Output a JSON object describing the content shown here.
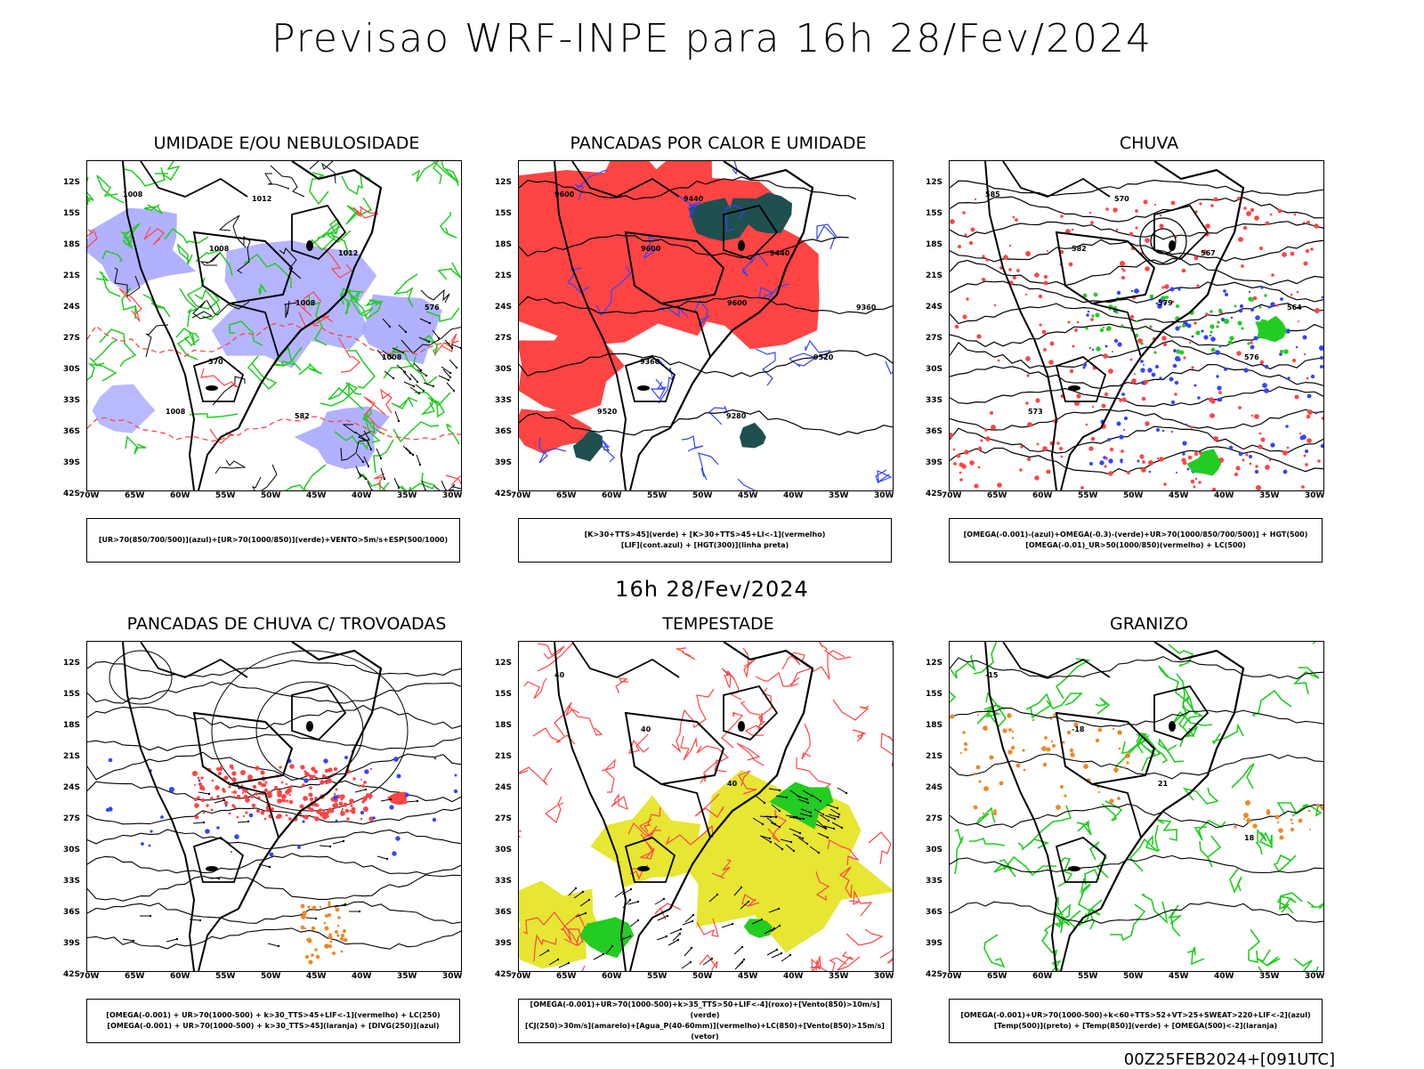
{
  "main_title": "Previsao WRF-INPE  para 16h 28/Fev/2024",
  "mid_title": "16h 28/Fev/2024",
  "footer": "00Z25FEB2024+[091UTC]",
  "lat_ticks": [
    "12S",
    "15S",
    "18S",
    "21S",
    "24S",
    "27S",
    "30S",
    "33S",
    "36S",
    "39S",
    "42S"
  ],
  "lon_ticks": [
    "70W",
    "65W",
    "60W",
    "55W",
    "50W",
    "45W",
    "40W",
    "35W",
    "30W"
  ],
  "colors": {
    "green": "#22cc22",
    "red": "#ff4444",
    "blue": "#3344ff",
    "lavender": "#a8a8ff",
    "darkteal": "#1f4f4f",
    "yellow": "#e6e633",
    "orange": "#ee8822"
  },
  "panels": [
    {
      "title": "UMIDADE E/OU NEBULOSIDADE",
      "legend": [
        "[UR>70(850/700/500)](azul)+[UR>70(1000/850)](verde)+VENTO>5m/s+ESP(500/1000)"
      ],
      "labels": [
        "1008",
        "1008",
        "1008",
        "1008",
        "1008",
        "1012",
        "1012",
        "576",
        "570",
        "582"
      ]
    },
    {
      "title": "PANCADAS POR CALOR E UMIDADE",
      "legend": [
        "[K>30+TTS>45](verde) + [K>30+TTS>45+LI<-1](vermelho)",
        "[LIF](cont.azul) + [HGT(300)](linha preta)"
      ],
      "labels": [
        "9600",
        "9600",
        "9600",
        "9520",
        "9520",
        "9440",
        "9440",
        "9360",
        "9360",
        "9280"
      ]
    },
    {
      "title": "CHUVA",
      "legend": [
        "[OMEGA(-0.001)-(azul)+OMEGA(-0.3)-(verde)+UR>70(1000/850/700/500)] + HGT(500)",
        "[OMEGA(-0.01)_UR>50(1000/850)(vermelho) + LC(500)"
      ],
      "labels": [
        "585",
        "582",
        "579",
        "576",
        "573",
        "570",
        "567",
        "564"
      ]
    },
    {
      "title": "PANCADAS DE CHUVA C/ TROVOADAS",
      "legend": [
        "[OMEGA(-0.001) + UR>70(1000-500) + k>30_TTS>45+LIF<-1](vermelho) + LC(250)",
        "[OMEGA(-0.001) + UR>70(1000-500) + k>30_TTS>45](laranja) + [DIVG(250)](azul)"
      ],
      "labels": []
    },
    {
      "title": "TEMPESTADE",
      "legend": [
        "[OMEGA(-0.001)+UR>70(1000-500)+k>35_TTS>50+LIF<-4](roxo)+[Vento(850)>10m/s](verde)",
        "[CJ(250)>30m/s](amarelo)+[Agua_P(40-60mm)](vermelho)+LC(850)+[Vento(850)>15m/s](vetor)"
      ],
      "labels": [
        "40",
        "40",
        "40"
      ]
    },
    {
      "title": "GRANIZO",
      "legend": [
        "[OMEGA(-0.001)+UR>70(1000-500)+k<60+TTS>52+VT>25+SWEAT>220+LIF<-2](azul)",
        "[Temp(500)](preto) + [Temp(850)](verde) + [OMEGA(500)<-2](laranja)"
      ],
      "labels": [
        "-15",
        "-18",
        "21",
        "18"
      ]
    }
  ]
}
